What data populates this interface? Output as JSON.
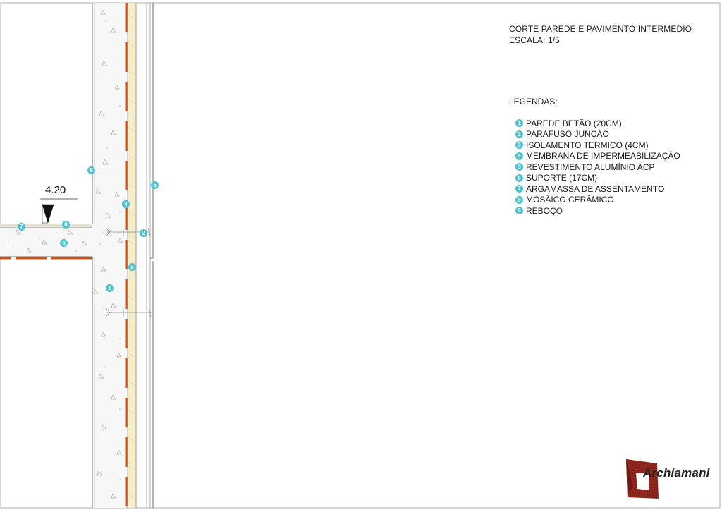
{
  "header": {
    "title": "CORTE PAREDE E PAVIMENTO INTERMEDIO",
    "scale": "ESCALA: 1/5"
  },
  "legend": {
    "title": "LEGENDAS:",
    "items": [
      {
        "num": "1",
        "label": "PAREDE BETÃO (20CM)"
      },
      {
        "num": "2",
        "label": "PARAFUSO JUNÇÃO"
      },
      {
        "num": "3",
        "label": "ISOLAMENTO TERMICO (4CM)"
      },
      {
        "num": "4",
        "label": "MEMBRANA DE IMPERMEABILIZAÇÃO"
      },
      {
        "num": "5",
        "label": "REVESTIMENTO ALUMÍNIO ACP"
      },
      {
        "num": "6",
        "label": "SUPORTE (17CM)"
      },
      {
        "num": "7",
        "label": "ARGAMASSA DE ASSENTAMENTO"
      },
      {
        "num": "8",
        "label": "MOSÂICO CERÂMICO"
      },
      {
        "num": "9",
        "label": "REBOÇO"
      }
    ]
  },
  "drawing": {
    "elevation": "4.20",
    "callouts": [
      "1",
      "2",
      "3",
      "4",
      "5",
      "6",
      "7",
      "8",
      "9"
    ]
  },
  "logo": {
    "text": "Archiamani"
  },
  "colors": {
    "badge": "#4cc3cf",
    "steel": "#c7541b",
    "insulation": "#f4edc7",
    "concrete": "#f7f7f7",
    "line": "#7a7a7a"
  }
}
